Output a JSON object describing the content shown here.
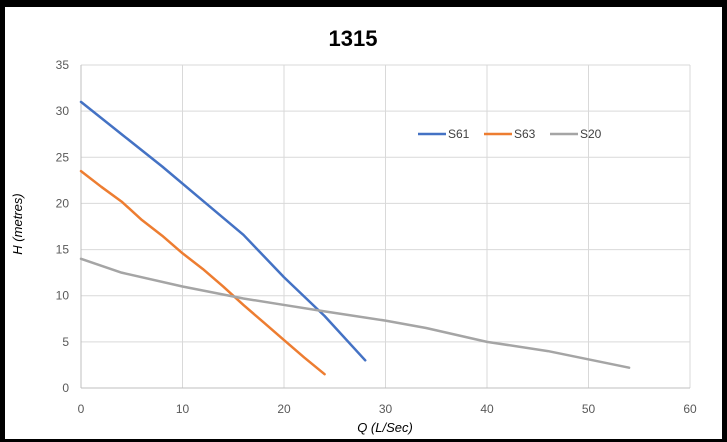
{
  "chart_data": {
    "type": "line",
    "title": "1315",
    "xlabel": "Q (L/Sec)",
    "ylabel": "H (metres)",
    "xlim": [
      0,
      60
    ],
    "ylim": [
      0,
      35
    ],
    "xticks": [
      "0",
      "10",
      "20",
      "30",
      "40",
      "50",
      "60"
    ],
    "yticks": [
      "0",
      "5",
      "10",
      "15",
      "20",
      "25",
      "30",
      "35"
    ],
    "grid": true,
    "legend_position": "top-right",
    "series": [
      {
        "name": "S61",
        "color": "#4472C4",
        "points": [
          [
            0,
            31
          ],
          [
            4,
            27.5
          ],
          [
            8,
            24
          ],
          [
            12,
            20.3
          ],
          [
            16,
            16.6
          ],
          [
            20,
            12
          ],
          [
            24,
            7.8
          ],
          [
            28,
            3
          ]
        ]
      },
      {
        "name": "S63",
        "color": "#ED7D31",
        "points": [
          [
            0,
            23.5
          ],
          [
            2,
            21.8
          ],
          [
            4,
            20.2
          ],
          [
            6,
            18.2
          ],
          [
            8,
            16.5
          ],
          [
            10,
            14.6
          ],
          [
            12,
            12.9
          ],
          [
            14,
            11
          ],
          [
            16,
            9
          ],
          [
            18,
            7.1
          ],
          [
            20,
            5.2
          ],
          [
            22,
            3.3
          ],
          [
            24,
            1.5
          ]
        ]
      },
      {
        "name": "S20",
        "color": "#A5A5A5",
        "points": [
          [
            0,
            14
          ],
          [
            4,
            12.5
          ],
          [
            10,
            11
          ],
          [
            16,
            9.7
          ],
          [
            20,
            9
          ],
          [
            24,
            8.3
          ],
          [
            30,
            7.3
          ],
          [
            34,
            6.5
          ],
          [
            40,
            5
          ],
          [
            46,
            4
          ],
          [
            54,
            2.2
          ]
        ]
      }
    ]
  }
}
